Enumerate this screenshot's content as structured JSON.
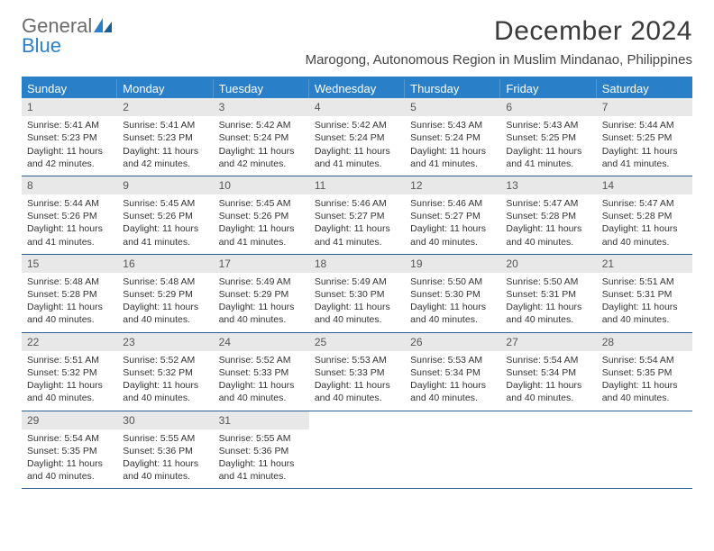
{
  "brand": {
    "main": "General",
    "accent": "Blue"
  },
  "title": "December 2024",
  "location": "Marogong, Autonomous Region in Muslim Mindanao, Philippines",
  "colors": {
    "header_bar": "#2a7fc9",
    "week_divider": "#2a5f8f",
    "daynum_bg": "#e8e8e8",
    "text": "#333333",
    "logo_gray": "#6b6b6b"
  },
  "days_of_week": [
    "Sunday",
    "Monday",
    "Tuesday",
    "Wednesday",
    "Thursday",
    "Friday",
    "Saturday"
  ],
  "weeks": [
    [
      {
        "n": "1",
        "sr": "Sunrise: 5:41 AM",
        "ss": "Sunset: 5:23 PM",
        "d1": "Daylight: 11 hours",
        "d2": "and 42 minutes."
      },
      {
        "n": "2",
        "sr": "Sunrise: 5:41 AM",
        "ss": "Sunset: 5:23 PM",
        "d1": "Daylight: 11 hours",
        "d2": "and 42 minutes."
      },
      {
        "n": "3",
        "sr": "Sunrise: 5:42 AM",
        "ss": "Sunset: 5:24 PM",
        "d1": "Daylight: 11 hours",
        "d2": "and 42 minutes."
      },
      {
        "n": "4",
        "sr": "Sunrise: 5:42 AM",
        "ss": "Sunset: 5:24 PM",
        "d1": "Daylight: 11 hours",
        "d2": "and 41 minutes."
      },
      {
        "n": "5",
        "sr": "Sunrise: 5:43 AM",
        "ss": "Sunset: 5:24 PM",
        "d1": "Daylight: 11 hours",
        "d2": "and 41 minutes."
      },
      {
        "n": "6",
        "sr": "Sunrise: 5:43 AM",
        "ss": "Sunset: 5:25 PM",
        "d1": "Daylight: 11 hours",
        "d2": "and 41 minutes."
      },
      {
        "n": "7",
        "sr": "Sunrise: 5:44 AM",
        "ss": "Sunset: 5:25 PM",
        "d1": "Daylight: 11 hours",
        "d2": "and 41 minutes."
      }
    ],
    [
      {
        "n": "8",
        "sr": "Sunrise: 5:44 AM",
        "ss": "Sunset: 5:26 PM",
        "d1": "Daylight: 11 hours",
        "d2": "and 41 minutes."
      },
      {
        "n": "9",
        "sr": "Sunrise: 5:45 AM",
        "ss": "Sunset: 5:26 PM",
        "d1": "Daylight: 11 hours",
        "d2": "and 41 minutes."
      },
      {
        "n": "10",
        "sr": "Sunrise: 5:45 AM",
        "ss": "Sunset: 5:26 PM",
        "d1": "Daylight: 11 hours",
        "d2": "and 41 minutes."
      },
      {
        "n": "11",
        "sr": "Sunrise: 5:46 AM",
        "ss": "Sunset: 5:27 PM",
        "d1": "Daylight: 11 hours",
        "d2": "and 41 minutes."
      },
      {
        "n": "12",
        "sr": "Sunrise: 5:46 AM",
        "ss": "Sunset: 5:27 PM",
        "d1": "Daylight: 11 hours",
        "d2": "and 40 minutes."
      },
      {
        "n": "13",
        "sr": "Sunrise: 5:47 AM",
        "ss": "Sunset: 5:28 PM",
        "d1": "Daylight: 11 hours",
        "d2": "and 40 minutes."
      },
      {
        "n": "14",
        "sr": "Sunrise: 5:47 AM",
        "ss": "Sunset: 5:28 PM",
        "d1": "Daylight: 11 hours",
        "d2": "and 40 minutes."
      }
    ],
    [
      {
        "n": "15",
        "sr": "Sunrise: 5:48 AM",
        "ss": "Sunset: 5:28 PM",
        "d1": "Daylight: 11 hours",
        "d2": "and 40 minutes."
      },
      {
        "n": "16",
        "sr": "Sunrise: 5:48 AM",
        "ss": "Sunset: 5:29 PM",
        "d1": "Daylight: 11 hours",
        "d2": "and 40 minutes."
      },
      {
        "n": "17",
        "sr": "Sunrise: 5:49 AM",
        "ss": "Sunset: 5:29 PM",
        "d1": "Daylight: 11 hours",
        "d2": "and 40 minutes."
      },
      {
        "n": "18",
        "sr": "Sunrise: 5:49 AM",
        "ss": "Sunset: 5:30 PM",
        "d1": "Daylight: 11 hours",
        "d2": "and 40 minutes."
      },
      {
        "n": "19",
        "sr": "Sunrise: 5:50 AM",
        "ss": "Sunset: 5:30 PM",
        "d1": "Daylight: 11 hours",
        "d2": "and 40 minutes."
      },
      {
        "n": "20",
        "sr": "Sunrise: 5:50 AM",
        "ss": "Sunset: 5:31 PM",
        "d1": "Daylight: 11 hours",
        "d2": "and 40 minutes."
      },
      {
        "n": "21",
        "sr": "Sunrise: 5:51 AM",
        "ss": "Sunset: 5:31 PM",
        "d1": "Daylight: 11 hours",
        "d2": "and 40 minutes."
      }
    ],
    [
      {
        "n": "22",
        "sr": "Sunrise: 5:51 AM",
        "ss": "Sunset: 5:32 PM",
        "d1": "Daylight: 11 hours",
        "d2": "and 40 minutes."
      },
      {
        "n": "23",
        "sr": "Sunrise: 5:52 AM",
        "ss": "Sunset: 5:32 PM",
        "d1": "Daylight: 11 hours",
        "d2": "and 40 minutes."
      },
      {
        "n": "24",
        "sr": "Sunrise: 5:52 AM",
        "ss": "Sunset: 5:33 PM",
        "d1": "Daylight: 11 hours",
        "d2": "and 40 minutes."
      },
      {
        "n": "25",
        "sr": "Sunrise: 5:53 AM",
        "ss": "Sunset: 5:33 PM",
        "d1": "Daylight: 11 hours",
        "d2": "and 40 minutes."
      },
      {
        "n": "26",
        "sr": "Sunrise: 5:53 AM",
        "ss": "Sunset: 5:34 PM",
        "d1": "Daylight: 11 hours",
        "d2": "and 40 minutes."
      },
      {
        "n": "27",
        "sr": "Sunrise: 5:54 AM",
        "ss": "Sunset: 5:34 PM",
        "d1": "Daylight: 11 hours",
        "d2": "and 40 minutes."
      },
      {
        "n": "28",
        "sr": "Sunrise: 5:54 AM",
        "ss": "Sunset: 5:35 PM",
        "d1": "Daylight: 11 hours",
        "d2": "and 40 minutes."
      }
    ],
    [
      {
        "n": "29",
        "sr": "Sunrise: 5:54 AM",
        "ss": "Sunset: 5:35 PM",
        "d1": "Daylight: 11 hours",
        "d2": "and 40 minutes."
      },
      {
        "n": "30",
        "sr": "Sunrise: 5:55 AM",
        "ss": "Sunset: 5:36 PM",
        "d1": "Daylight: 11 hours",
        "d2": "and 40 minutes."
      },
      {
        "n": "31",
        "sr": "Sunrise: 5:55 AM",
        "ss": "Sunset: 5:36 PM",
        "d1": "Daylight: 11 hours",
        "d2": "and 41 minutes."
      },
      null,
      null,
      null,
      null
    ]
  ]
}
